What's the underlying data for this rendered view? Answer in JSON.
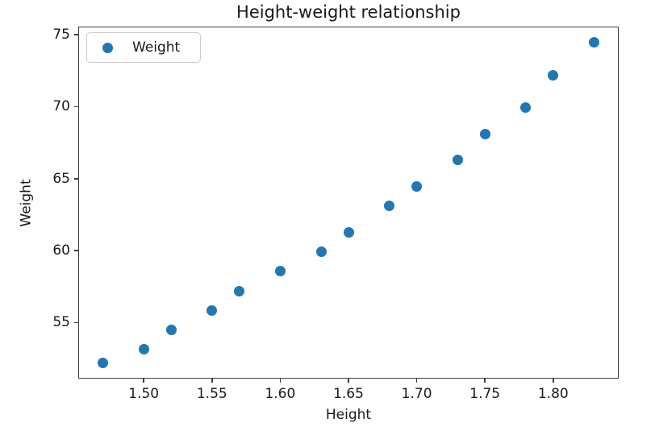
{
  "chart_data": {
    "type": "scatter",
    "title": "Height-weight relationship",
    "xlabel": "Height",
    "ylabel": "Weight",
    "grid": false,
    "legend": {
      "label": "Weight",
      "position": "upper left"
    },
    "xlim": [
      1.452,
      1.848
    ],
    "ylim": [
      51.1,
      75.57
    ],
    "xticks": [
      {
        "value": 1.5,
        "label": "1.50"
      },
      {
        "value": 1.55,
        "label": "1.55"
      },
      {
        "value": 1.6,
        "label": "1.60"
      },
      {
        "value": 1.65,
        "label": "1.65"
      },
      {
        "value": 1.7,
        "label": "1.70"
      },
      {
        "value": 1.75,
        "label": "1.75"
      },
      {
        "value": 1.8,
        "label": "1.80"
      }
    ],
    "yticks": [
      {
        "value": 55,
        "label": "55"
      },
      {
        "value": 60,
        "label": "60"
      },
      {
        "value": 65,
        "label": "65"
      },
      {
        "value": 70,
        "label": "70"
      },
      {
        "value": 75,
        "label": "75"
      }
    ],
    "series": [
      {
        "name": "Weight",
        "color": "#1f77b4",
        "x": [
          1.47,
          1.5,
          1.52,
          1.55,
          1.57,
          1.6,
          1.63,
          1.65,
          1.68,
          1.7,
          1.73,
          1.75,
          1.78,
          1.8,
          1.83
        ],
        "y": [
          52.21,
          53.12,
          54.48,
          55.84,
          57.2,
          58.57,
          59.93,
          61.29,
          63.11,
          64.47,
          66.28,
          68.1,
          69.92,
          72.19,
          74.46
        ]
      }
    ]
  },
  "colors": {
    "marker": "#1f77b4",
    "spine": "#3d3d3d",
    "text": "#1a1a1a",
    "legend_border": "#cccccc"
  }
}
